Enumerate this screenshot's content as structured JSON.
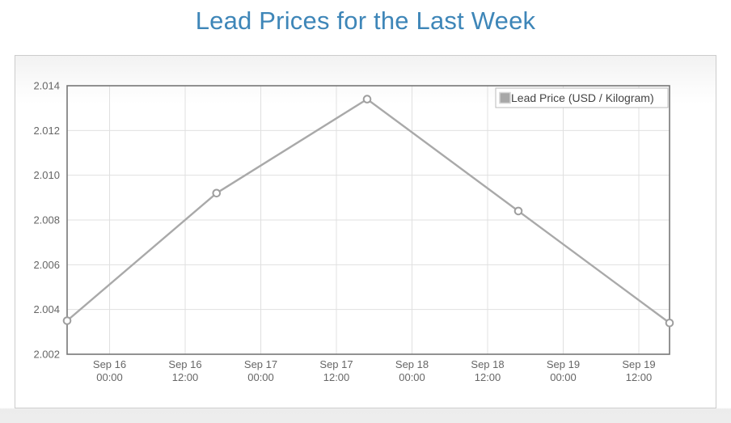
{
  "page": {
    "title": "Lead Prices for the Last Week",
    "title_color": "#3e86b8"
  },
  "chart_data": {
    "type": "line",
    "title": "Lead Prices for the Last Week",
    "xlabel": "",
    "ylabel": "",
    "ylim": [
      2.002,
      2.014
    ],
    "ytick_step": 0.002,
    "ytick_labels": [
      "2.014",
      "2.012",
      "2.010",
      "2.008",
      "2.006",
      "2.004",
      "2.002"
    ],
    "xticks": [
      {
        "date": "Sep 16",
        "time": "00:00",
        "fraction": 0.0705
      },
      {
        "date": "Sep 16",
        "time": "12:00",
        "fraction": 0.196
      },
      {
        "date": "Sep 17",
        "time": "00:00",
        "fraction": 0.3215
      },
      {
        "date": "Sep 17",
        "time": "12:00",
        "fraction": 0.447
      },
      {
        "date": "Sep 18",
        "time": "00:00",
        "fraction": 0.5725
      },
      {
        "date": "Sep 18",
        "time": "12:00",
        "fraction": 0.698
      },
      {
        "date": "Sep 19",
        "time": "00:00",
        "fraction": 0.8235
      },
      {
        "date": "Sep 19",
        "time": "12:00",
        "fraction": 0.949
      }
    ],
    "grid": true,
    "legend": {
      "position": "top-right",
      "label": "Lead Price (USD / Kilogram)",
      "swatch_color": "#a7a7a7"
    },
    "series": [
      {
        "name": "Lead Price (USD / Kilogram)",
        "color": "#a9a9a9",
        "marker": "open-circle",
        "points": [
          {
            "date": "Sep 15",
            "x_fraction": 0.0,
            "value": 2.0035
          },
          {
            "date": "Sep 16",
            "x_fraction": 0.248,
            "value": 2.0092
          },
          {
            "date": "Sep 17",
            "x_fraction": 0.498,
            "value": 2.0134
          },
          {
            "date": "Sep 18",
            "x_fraction": 0.749,
            "value": 2.0084
          },
          {
            "date": "Sep 19",
            "x_fraction": 1.0,
            "value": 2.0034
          }
        ]
      }
    ],
    "colors": {
      "gridline": "#e0e0e0",
      "axis_border": "#777777",
      "tick_text": "#666666",
      "legend_text": "#444444",
      "legend_border": "#bbbbbb",
      "marker_stroke": "#9e9e9e",
      "marker_fill": "#ffffff"
    }
  }
}
